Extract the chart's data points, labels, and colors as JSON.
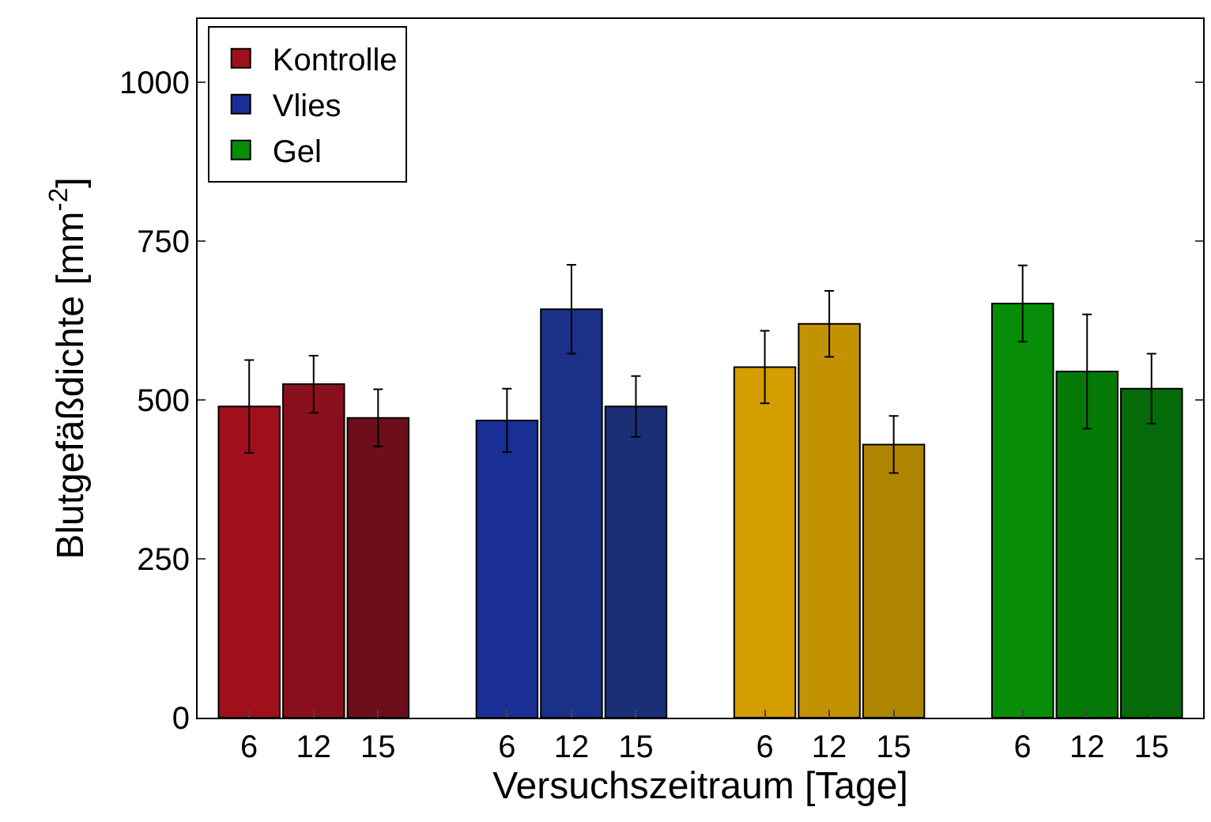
{
  "chart_data": {
    "type": "bar",
    "xlabel": "Versuchszeitraum [Tage]",
    "ylabel": "Blutgefäßdichte [mm$^{-2}$]",
    "categories": [
      "6",
      "12",
      "15",
      null,
      "6",
      "12",
      "15",
      null,
      "6",
      "12",
      "15",
      null,
      "6",
      "12",
      "15"
    ],
    "ylim": [
      0,
      1100
    ],
    "yticks": [
      0,
      250,
      500,
      750,
      1000
    ],
    "legend": "top left",
    "series": [
      {
        "name": "Kontrolle",
        "color": "#a0101c",
        "colors": [
          null,
          "#8a0f1c",
          "#6d0e1a",
          null,
          null,
          null,
          null,
          null,
          null,
          null,
          null,
          null,
          null,
          null,
          null
        ],
        "values": [
          490,
          525,
          472,
          null,
          null,
          null,
          null,
          null,
          null,
          null,
          null,
          null,
          null,
          null,
          null
        ],
        "errors": [
          73,
          45,
          45,
          null,
          null,
          null,
          null,
          null,
          null,
          null,
          null,
          null,
          null,
          null,
          null
        ]
      },
      {
        "name": "Vlies",
        "color": "#1a2f95",
        "colors": [
          null,
          null,
          null,
          null,
          null,
          "#1b3088",
          "#1a2f75",
          null,
          null,
          null,
          null,
          null,
          null,
          null,
          null
        ],
        "values": [
          null,
          null,
          null,
          null,
          468,
          643,
          490,
          null,
          null,
          null,
          null,
          null,
          null,
          null,
          null
        ],
        "errors": [
          null,
          null,
          null,
          null,
          50,
          70,
          48,
          null,
          null,
          null,
          null,
          null,
          null,
          null,
          null
        ]
      },
      {
        "color": "#d49d00",
        "colors": [
          null,
          null,
          null,
          null,
          null,
          null,
          null,
          null,
          null,
          "#c39200",
          "#ad8500",
          null,
          null,
          null,
          null
        ],
        "values": [
          null,
          null,
          null,
          null,
          null,
          null,
          null,
          null,
          552,
          620,
          430,
          null,
          null,
          null,
          null
        ],
        "errors": [
          null,
          null,
          null,
          null,
          null,
          null,
          null,
          null,
          57,
          52,
          45,
          null,
          null,
          null,
          null
        ]
      },
      {
        "name": "Gel",
        "color": "#078d07",
        "colors": [
          null,
          null,
          null,
          null,
          null,
          null,
          null,
          null,
          null,
          null,
          null,
          null,
          null,
          "#067a08",
          "#056a08"
        ],
        "values": [
          null,
          null,
          null,
          null,
          null,
          null,
          null,
          null,
          null,
          null,
          null,
          null,
          652,
          545,
          518
        ],
        "errors": [
          null,
          null,
          null,
          null,
          null,
          null,
          null,
          null,
          null,
          null,
          null,
          null,
          60,
          90,
          55
        ]
      }
    ]
  }
}
